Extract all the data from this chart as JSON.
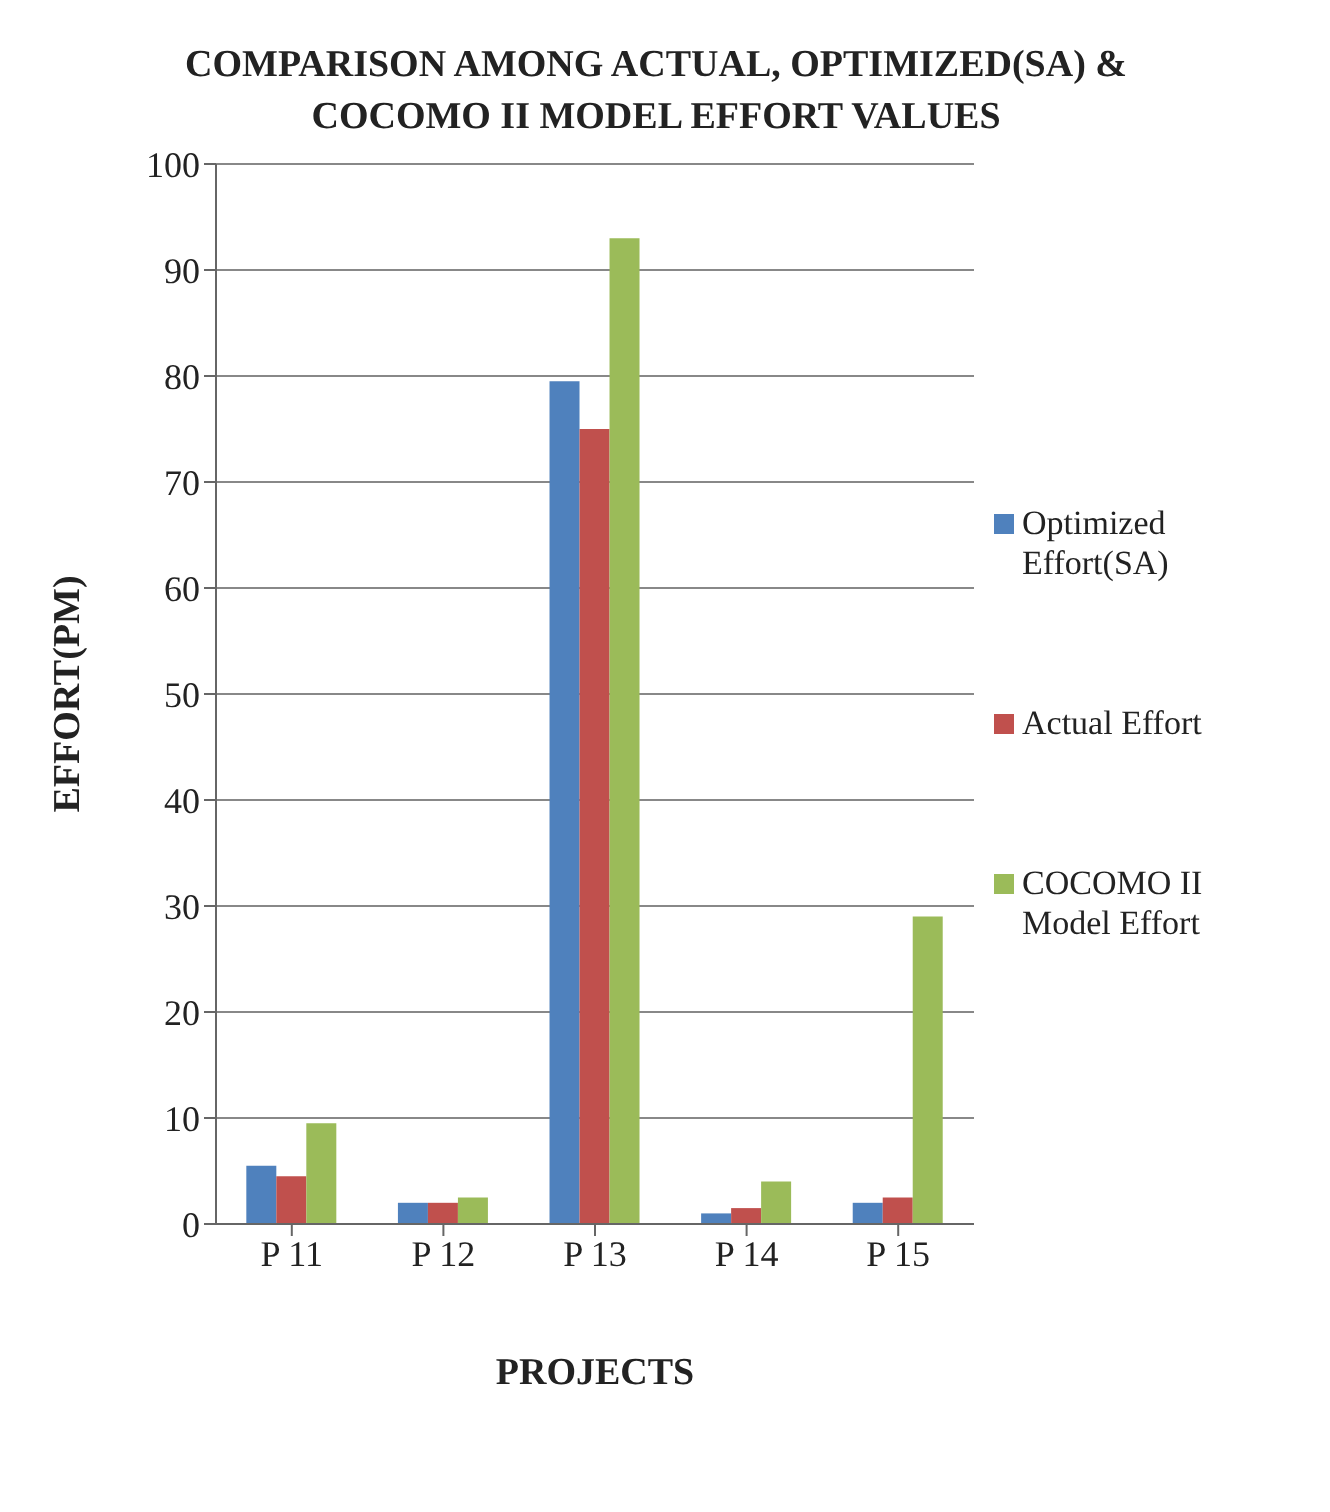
{
  "chart_data": {
    "type": "bar",
    "title": "COMPARISON AMONG ACTUAL, OPTIMIZED(SA) & COCOMO II MODEL EFFORT VALUES",
    "xlabel": "PROJECTS",
    "ylabel": "EFFORT(PM)",
    "categories": [
      "P 11",
      "P 12",
      "P 13",
      "P 14",
      "P 15"
    ],
    "series": [
      {
        "name": "Optimized Effort(SA)",
        "color": "#4f81bd",
        "values": [
          5.5,
          2,
          79.5,
          1,
          2
        ]
      },
      {
        "name": "Actual Effort",
        "color": "#c0504d",
        "values": [
          4.5,
          2,
          75,
          1.5,
          2.5
        ]
      },
      {
        "name": "COCOMO II Model Effort",
        "color": "#9bbb59",
        "values": [
          9.5,
          2.5,
          93,
          4,
          29
        ]
      }
    ],
    "ylim": [
      0,
      100
    ],
    "yticks": [
      0,
      10,
      20,
      30,
      40,
      50,
      60,
      70,
      80,
      90,
      100
    ],
    "grid": "y",
    "legend": "right"
  }
}
